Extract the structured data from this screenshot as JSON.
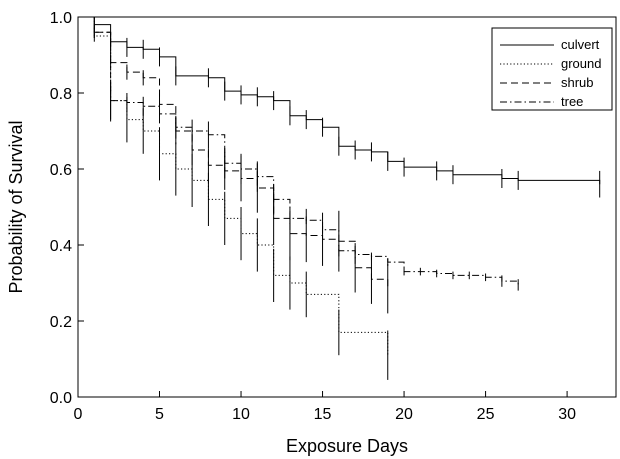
{
  "chart_data": {
    "type": "line",
    "xlabel": "Exposure Days",
    "ylabel": "Probability of Survival",
    "xlim": [
      0,
      33
    ],
    "ylim": [
      0,
      1
    ],
    "xticks": [
      0,
      5,
      10,
      15,
      20,
      25,
      30
    ],
    "yticks": [
      0.0,
      0.2,
      0.4,
      0.6,
      0.8,
      1.0
    ],
    "ytick_labels": [
      "0.0",
      "0.2",
      "0.4",
      "0.6",
      "0.8",
      "1.0"
    ],
    "grid": false,
    "legend": "top-right",
    "series": [
      {
        "name": "culvert",
        "style": "solid",
        "x": [
          0,
          1,
          2,
          3,
          4,
          5,
          6,
          8,
          9,
          10,
          11,
          12,
          13,
          14,
          15,
          16,
          17,
          18,
          19,
          20,
          22,
          23,
          26,
          27,
          32
        ],
        "y": [
          1.0,
          0.98,
          0.935,
          0.92,
          0.915,
          0.895,
          0.845,
          0.84,
          0.805,
          0.795,
          0.79,
          0.78,
          0.74,
          0.73,
          0.71,
          0.66,
          0.65,
          0.645,
          0.62,
          0.605,
          0.595,
          0.585,
          0.575,
          0.57,
          0.56
        ],
        "err": [
          0,
          0.015,
          0.025,
          0.025,
          0.025,
          0.025,
          0.025,
          0.025,
          0.025,
          0.025,
          0.025,
          0.025,
          0.025,
          0.025,
          0.025,
          0.025,
          0.025,
          0.025,
          0.025,
          0.025,
          0.025,
          0.025,
          0.025,
          0.025,
          0.035
        ]
      },
      {
        "name": "ground",
        "style": "dotted",
        "x": [
          0,
          1,
          2,
          3,
          4,
          5,
          6,
          7,
          8,
          9,
          10,
          11,
          12,
          13,
          14,
          16,
          19
        ],
        "y": [
          1.0,
          0.95,
          0.78,
          0.73,
          0.7,
          0.64,
          0.6,
          0.57,
          0.52,
          0.47,
          0.43,
          0.4,
          0.32,
          0.3,
          0.27,
          0.17,
          0.11
        ],
        "err": [
          0,
          0.015,
          0.05,
          0.06,
          0.06,
          0.07,
          0.07,
          0.07,
          0.07,
          0.07,
          0.07,
          0.07,
          0.07,
          0.07,
          0.06,
          0.06,
          0.065
        ]
      },
      {
        "name": "shrub",
        "style": "dashed",
        "x": [
          0,
          1,
          2,
          3,
          4,
          5,
          6,
          7,
          8,
          9,
          10,
          11,
          12,
          13,
          14,
          15,
          16,
          17,
          18,
          19
        ],
        "y": [
          1.0,
          0.96,
          0.88,
          0.855,
          0.84,
          0.77,
          0.7,
          0.65,
          0.61,
          0.595,
          0.575,
          0.55,
          0.47,
          0.43,
          0.425,
          0.415,
          0.41,
          0.34,
          0.31,
          0.285
        ],
        "err": [
          0,
          0.015,
          0.02,
          0.02,
          0.02,
          0.03,
          0.035,
          0.04,
          0.045,
          0.05,
          0.06,
          0.065,
          0.07,
          0.07,
          0.07,
          0.07,
          0.08,
          0.065,
          0.065,
          0.065
        ]
      },
      {
        "name": "tree",
        "style": "dashdot",
        "x": [
          0,
          1,
          2,
          3,
          4,
          5,
          6,
          7,
          8,
          9,
          10,
          11,
          12,
          13,
          14,
          15,
          16,
          17,
          18,
          19,
          20,
          21,
          22,
          23,
          24,
          25,
          26,
          27
        ],
        "y": [
          1.0,
          0.96,
          0.78,
          0.775,
          0.765,
          0.745,
          0.71,
          0.7,
          0.69,
          0.615,
          0.6,
          0.58,
          0.52,
          0.47,
          0.465,
          0.44,
          0.385,
          0.375,
          0.37,
          0.355,
          0.33,
          0.33,
          0.325,
          0.32,
          0.32,
          0.315,
          0.305,
          0.295
        ],
        "err": [
          0,
          0.015,
          0.055,
          0.025,
          0.025,
          0.025,
          0.03,
          0.03,
          0.035,
          0.04,
          0.04,
          0.04,
          0.04,
          0.015,
          0.01,
          0.01,
          0.015,
          0.01,
          0.01,
          0.01,
          0.01,
          0.01,
          0.01,
          0.01,
          0.01,
          0.01,
          0.015,
          0.015
        ]
      }
    ]
  }
}
